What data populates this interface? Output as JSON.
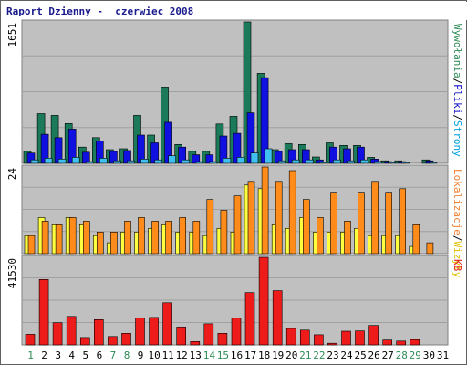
{
  "chart_data": [
    {
      "type": "bar",
      "title": "Raport Dzienny -  czerwiec 2008",
      "panel": "top",
      "y_max_label": "1651",
      "ylim": [
        0,
        1651
      ],
      "right_label": [
        {
          "text": "Wywołania",
          "color": "#2e8b57"
        },
        {
          "text": "/",
          "color": "#000000"
        },
        {
          "text": "Pliki",
          "color": "#1010c8"
        },
        {
          "text": "/",
          "color": "#000000"
        },
        {
          "text": "Strony",
          "color": "#00a0e0"
        }
      ],
      "series": [
        {
          "name": "Wywołania",
          "color": "#1a7a5a",
          "values": [
            140,
            580,
            560,
            465,
            190,
            300,
            160,
            170,
            560,
            330,
            890,
            220,
            140,
            140,
            460,
            550,
            1651,
            1050,
            160,
            230,
            220,
            75,
            240,
            210,
            210,
            70,
            30,
            30,
            0,
            40
          ]
        },
        {
          "name": "Pliki",
          "color": "#1010e0",
          "values": [
            120,
            340,
            300,
            400,
            130,
            260,
            140,
            150,
            330,
            240,
            480,
            190,
            100,
            100,
            320,
            350,
            590,
            1000,
            140,
            160,
            160,
            40,
            190,
            170,
            190,
            50,
            20,
            20,
            0,
            30
          ]
        },
        {
          "name": "Strony",
          "color": "#40c0f0",
          "values": [
            40,
            60,
            50,
            70,
            20,
            60,
            30,
            30,
            50,
            40,
            90,
            40,
            20,
            20,
            60,
            70,
            120,
            170,
            30,
            40,
            40,
            10,
            40,
            30,
            40,
            20,
            5,
            5,
            0,
            10
          ]
        }
      ]
    },
    {
      "type": "bar",
      "panel": "middle",
      "y_max_label": "24",
      "ylim": [
        0,
        24
      ],
      "right_label": [
        {
          "text": "Lokalizacje",
          "color": "#f08030"
        },
        {
          "text": "/",
          "color": "#000000"
        },
        {
          "text": "Wizyty",
          "color": "#e0c000"
        }
      ],
      "series": [
        {
          "name": "Wizyty",
          "color": "#ffff40",
          "values": [
            5,
            10,
            8,
            10,
            8,
            5,
            3,
            6,
            6,
            7,
            8,
            6,
            6,
            5,
            7,
            6,
            19,
            18,
            8,
            7,
            10,
            6,
            6,
            6,
            7,
            5,
            5,
            5,
            2,
            0
          ]
        },
        {
          "name": "Lokalizacje",
          "color": "#ff8c1a",
          "values": [
            5,
            9,
            8,
            10,
            9,
            6,
            6,
            9,
            10,
            9,
            9,
            10,
            9,
            15,
            12,
            16,
            20,
            24,
            20,
            23,
            15,
            10,
            17,
            9,
            17,
            20,
            17,
            18,
            8,
            3
          ]
        }
      ]
    },
    {
      "type": "bar",
      "panel": "bottom",
      "y_max_label": "41530",
      "ylim": [
        0,
        41530
      ],
      "right_label": [
        {
          "text": "KB",
          "color": "#e02020"
        }
      ],
      "series": [
        {
          "name": "KB",
          "color": "#ee1b1b",
          "values": [
            5000,
            31000,
            10500,
            13500,
            3500,
            12000,
            4000,
            5500,
            12800,
            13000,
            20000,
            8500,
            1600,
            10000,
            5500,
            12800,
            24800,
            41530,
            25700,
            7800,
            7000,
            4800,
            800,
            6500,
            6600,
            9200,
            2300,
            1800,
            2500,
            0
          ]
        }
      ]
    }
  ],
  "days": [
    {
      "label": "1",
      "weekend": true
    },
    {
      "label": "2",
      "weekend": false
    },
    {
      "label": "3",
      "weekend": false
    },
    {
      "label": "4",
      "weekend": false
    },
    {
      "label": "5",
      "weekend": false
    },
    {
      "label": "6",
      "weekend": false
    },
    {
      "label": "7",
      "weekend": true
    },
    {
      "label": "8",
      "weekend": true
    },
    {
      "label": "9",
      "weekend": false
    },
    {
      "label": "10",
      "weekend": false
    },
    {
      "label": "11",
      "weekend": false
    },
    {
      "label": "12",
      "weekend": false
    },
    {
      "label": "13",
      "weekend": false
    },
    {
      "label": "14",
      "weekend": true
    },
    {
      "label": "15",
      "weekend": true
    },
    {
      "label": "16",
      "weekend": false
    },
    {
      "label": "17",
      "weekend": false
    },
    {
      "label": "18",
      "weekend": false
    },
    {
      "label": "19",
      "weekend": false
    },
    {
      "label": "20",
      "weekend": false
    },
    {
      "label": "21",
      "weekend": true
    },
    {
      "label": "22",
      "weekend": true
    },
    {
      "label": "23",
      "weekend": false
    },
    {
      "label": "24",
      "weekend": false
    },
    {
      "label": "25",
      "weekend": false
    },
    {
      "label": "26",
      "weekend": false
    },
    {
      "label": "27",
      "weekend": false
    },
    {
      "label": "28",
      "weekend": true
    },
    {
      "label": "29",
      "weekend": true
    },
    {
      "label": "30",
      "weekend": false
    },
    {
      "label": "31",
      "weekend": false
    }
  ],
  "colors": {
    "panel_bg": "#c0c0c0",
    "grid": "#a0a0a0",
    "weekday_text": "#000000",
    "weekend_text": "#2e8b57"
  }
}
